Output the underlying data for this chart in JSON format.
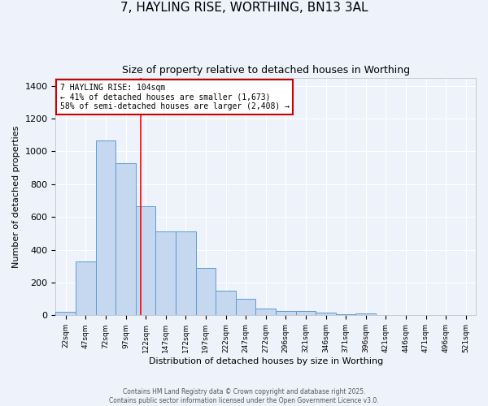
{
  "title": "7, HAYLING RISE, WORTHING, BN13 3AL",
  "subtitle": "Size of property relative to detached houses in Worthing",
  "xlabel": "Distribution of detached houses by size in Worthing",
  "ylabel": "Number of detached properties",
  "categories": [
    "22sqm",
    "47sqm",
    "72sqm",
    "97sqm",
    "122sqm",
    "147sqm",
    "172sqm",
    "197sqm",
    "222sqm",
    "247sqm",
    "272sqm",
    "296sqm",
    "321sqm",
    "346sqm",
    "371sqm",
    "396sqm",
    "421sqm",
    "446sqm",
    "471sqm",
    "496sqm",
    "521sqm"
  ],
  "values": [
    20,
    330,
    1065,
    930,
    665,
    510,
    510,
    290,
    150,
    100,
    40,
    25,
    25,
    15,
    5,
    10,
    0,
    0,
    0,
    0,
    0
  ],
  "bar_color": "#c5d8f0",
  "bar_edge_color": "#5b9bd5",
  "bar_width": 1.0,
  "red_line_x": 3.75,
  "annotation_text": "7 HAYLING RISE: 104sqm\n← 41% of detached houses are smaller (1,673)\n58% of semi-detached houses are larger (2,408) →",
  "annotation_box_color": "#ffffff",
  "annotation_box_edge": "#cc0000",
  "annotation_fontsize": 7,
  "ylim": [
    0,
    1450
  ],
  "background_color": "#eef2fa",
  "plot_bg_color": "#eef2fa",
  "grid_color": "#ffffff",
  "footer_line1": "Contains HM Land Registry data © Crown copyright and database right 2025.",
  "footer_line2": "Contains public sector information licensed under the Open Government Licence v3.0.",
  "title_fontsize": 11,
  "subtitle_fontsize": 9,
  "xlabel_fontsize": 8,
  "ylabel_fontsize": 8
}
